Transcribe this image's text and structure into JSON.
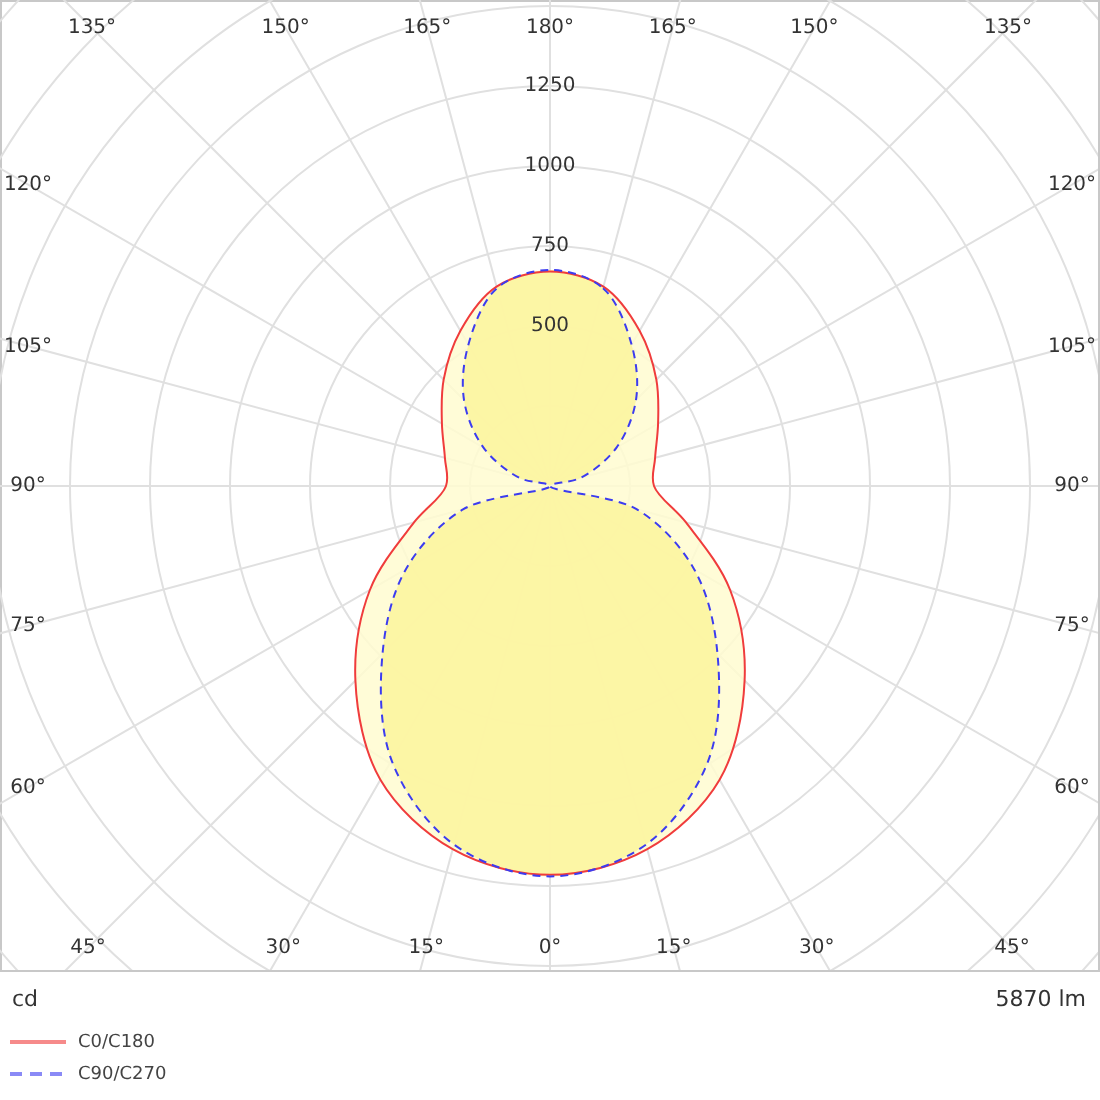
{
  "chart_data": {
    "type": "radar",
    "categories": [
      "180°",
      "165°",
      "150°",
      "135°",
      "120°",
      "105°",
      "90°",
      "75°",
      "60°",
      "45°",
      "30°",
      "15°",
      "0°",
      "15°",
      "30°",
      "45°",
      "60°",
      "75°",
      "90°",
      "105°",
      "120°",
      "135°",
      "150°",
      "165°"
    ],
    "series": [
      {
        "name": "C0/C180",
        "color": "#f03c3c",
        "line_style": "solid",
        "values": [
          670,
          645,
          560,
          470,
          390,
          340,
          325,
          440,
          650,
          860,
          1060,
          1175,
          1215,
          1175,
          1060,
          860,
          650,
          440,
          325,
          340,
          390,
          470,
          560,
          645
        ]
      },
      {
        "name": "C90/C270",
        "color": "#3c3cf0",
        "line_style": "dashed",
        "values": [
          675,
          640,
          510,
          380,
          240,
          100,
          0,
          280,
          520,
          740,
          990,
          1160,
          1220,
          1160,
          990,
          740,
          520,
          280,
          0,
          100,
          240,
          380,
          510,
          640
        ]
      }
    ],
    "ylim": [
      0,
      2250
    ],
    "yticks": [
      500,
      750,
      1000,
      1250
    ],
    "grid": true,
    "legend": "bottom left",
    "annotations": [
      "cd",
      "5870 lm"
    ]
  }
}
